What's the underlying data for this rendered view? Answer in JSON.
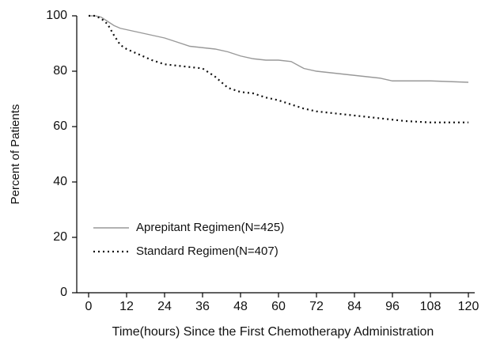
{
  "chart_data": {
    "type": "line",
    "x_label": "Time(hours) Since the First Chemotherapy Administration",
    "y_label": "Percent of Patients",
    "xlim": [
      0,
      120
    ],
    "xticks": [
      0,
      12,
      24,
      36,
      48,
      60,
      72,
      84,
      96,
      108,
      120
    ],
    "ylim": [
      0,
      100
    ],
    "yticks": [
      0,
      20,
      40,
      60,
      80,
      100
    ],
    "legend": "lower left",
    "series": [
      {
        "name": "Aprepitant Regimen(N=425)",
        "color": "#999999",
        "style": "solid",
        "x": [
          0,
          2,
          4,
          6,
          8,
          10,
          12,
          16,
          20,
          24,
          28,
          32,
          36,
          40,
          44,
          48,
          52,
          56,
          60,
          64,
          68,
          72,
          76,
          80,
          84,
          88,
          92,
          96,
          108,
          120
        ],
        "values": [
          100,
          100,
          99.5,
          98,
          96.5,
          95.5,
          95,
          94,
          93,
          92,
          90.5,
          89,
          88.5,
          88,
          87,
          85.5,
          84.5,
          84,
          84,
          83.5,
          81,
          80,
          79.5,
          79,
          78.5,
          78,
          77.5,
          76.5,
          76.5,
          76
        ]
      },
      {
        "name": "Standard Regimen(N=407)",
        "color": "#111111",
        "style": "dotted",
        "x": [
          0,
          2,
          4,
          6,
          8,
          10,
          12,
          16,
          20,
          24,
          28,
          32,
          36,
          40,
          44,
          48,
          52,
          56,
          60,
          64,
          68,
          72,
          76,
          80,
          84,
          88,
          92,
          96,
          100,
          108,
          120
        ],
        "values": [
          100,
          100,
          99,
          97,
          93,
          89.5,
          88,
          86,
          84,
          82.5,
          82,
          81.5,
          81,
          78,
          74,
          72.5,
          72,
          70.5,
          69.5,
          68,
          66.5,
          65.5,
          65,
          64.5,
          64,
          63.5,
          63,
          62.5,
          62,
          61.5,
          61.5
        ]
      }
    ]
  }
}
